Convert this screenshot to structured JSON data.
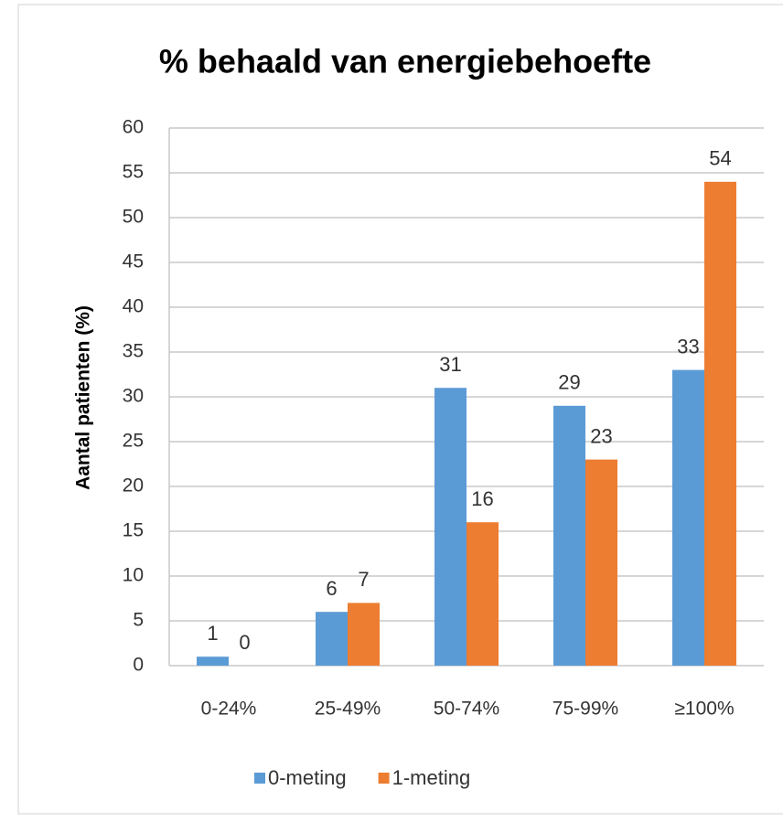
{
  "chart_data": {
    "type": "bar",
    "title": "% behaald van energiebehoefte",
    "y_label": "Aantal patienten (%)",
    "categories": [
      "0-24%",
      "25-49%",
      "50-74%",
      "75-99%",
      "≥100%"
    ],
    "series": [
      {
        "name": "0-meting",
        "color": "#5b9bd5",
        "values": [
          1,
          6,
          31,
          29,
          33
        ]
      },
      {
        "name": "1-meting",
        "color": "#ed7d31",
        "values": [
          0,
          7,
          16,
          23,
          54
        ]
      }
    ],
    "ylim": [
      0,
      60
    ],
    "yticks": [
      0,
      5,
      10,
      15,
      20,
      25,
      30,
      35,
      40,
      45,
      50,
      55,
      60
    ],
    "grid": true,
    "legend": "bottom"
  }
}
